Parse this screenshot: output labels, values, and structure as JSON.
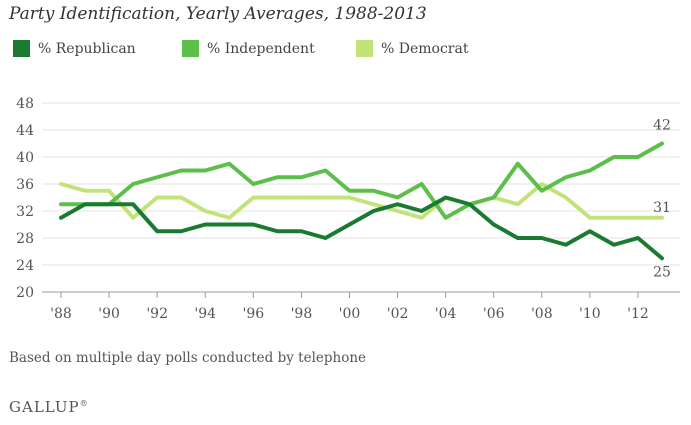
{
  "title": "Party Identification, Yearly Averages, 1988-2013",
  "footnote": "Based on multiple day polls conducted by telephone",
  "brand": "GALLUP",
  "brand_mark": "®",
  "chart_data": {
    "type": "line",
    "x": [
      1988,
      1989,
      1990,
      1991,
      1992,
      1993,
      1994,
      1995,
      1996,
      1997,
      1998,
      1999,
      2000,
      2001,
      2002,
      2003,
      2004,
      2005,
      2006,
      2007,
      2008,
      2009,
      2010,
      2011,
      2012,
      2013
    ],
    "xticks": [
      1988,
      1990,
      1992,
      1994,
      1996,
      1998,
      2000,
      2002,
      2004,
      2006,
      2008,
      2010,
      2012
    ],
    "xtick_labels": [
      "'88",
      "'90",
      "'92",
      "'94",
      "'96",
      "'98",
      "'00",
      "'02",
      "'04",
      "'06",
      "'08",
      "'10",
      "'12"
    ],
    "ylim": [
      20,
      48
    ],
    "yticks": [
      20,
      24,
      28,
      32,
      36,
      40,
      44,
      48
    ],
    "grid": true,
    "legend": "top-left",
    "series": [
      {
        "name": "% Republican",
        "color": "#1a7a32",
        "values": [
          31,
          33,
          33,
          33,
          29,
          29,
          30,
          30,
          30,
          29,
          29,
          28,
          30,
          32,
          33,
          32,
          34,
          33,
          30,
          28,
          28,
          27,
          29,
          27,
          28,
          25
        ],
        "end_label": "25"
      },
      {
        "name": "% Independent",
        "color": "#5cbf4a",
        "values": [
          33,
          33,
          33,
          36,
          37,
          38,
          38,
          39,
          36,
          37,
          37,
          38,
          35,
          35,
          34,
          36,
          31,
          33,
          34,
          39,
          35,
          37,
          38,
          40,
          40,
          42
        ],
        "end_label": "42"
      },
      {
        "name": "% Democrat",
        "color": "#c2e37a",
        "values": [
          36,
          35,
          35,
          31,
          34,
          34,
          32,
          31,
          34,
          34,
          34,
          34,
          34,
          33,
          32,
          31,
          34,
          33,
          34,
          33,
          36,
          34,
          31,
          31,
          31,
          31
        ],
        "end_label": "31"
      }
    ]
  }
}
